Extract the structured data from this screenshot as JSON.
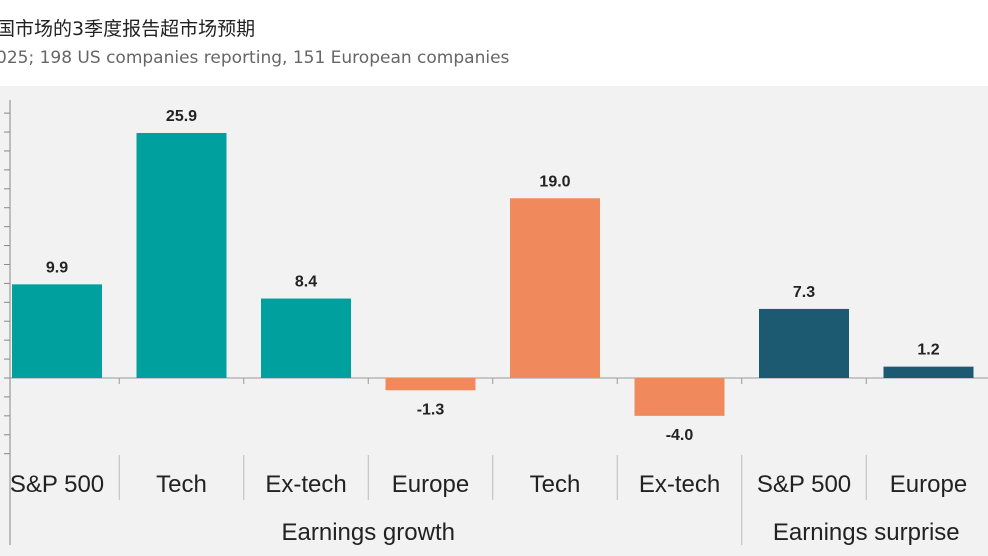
{
  "chart_data": {
    "type": "bar",
    "title": "国市场的3季度报告超市场预期",
    "subtitle": "025; 198 US companies reporting, 151 European companies",
    "categories": [
      "S&P 500",
      "Tech",
      "Ex-tech",
      "Europe",
      "Tech",
      "Ex-tech",
      "S&P 500",
      "Europe"
    ],
    "values": [
      9.9,
      25.9,
      8.4,
      -1.3,
      19.0,
      -4.0,
      7.3,
      1.2
    ],
    "labels": [
      "9.9",
      "25.9",
      "8.4",
      "-1.3",
      "19.0",
      "-4.0",
      "7.3",
      "1.2"
    ],
    "colors": [
      "#00a09e",
      "#00a09e",
      "#00a09e",
      "#f08a5d",
      "#f08a5d",
      "#f08a5d",
      "#1b5a70",
      "#1b5a70"
    ],
    "groups": [
      {
        "name": "Earnings growth",
        "span": [
          0,
          5
        ]
      },
      {
        "name": "Earnings surprise",
        "span": [
          6,
          7
        ]
      }
    ],
    "ylim": [
      -8,
      28
    ],
    "ytick_step": 2,
    "grid": false,
    "xlabel": "",
    "ylabel": ""
  }
}
